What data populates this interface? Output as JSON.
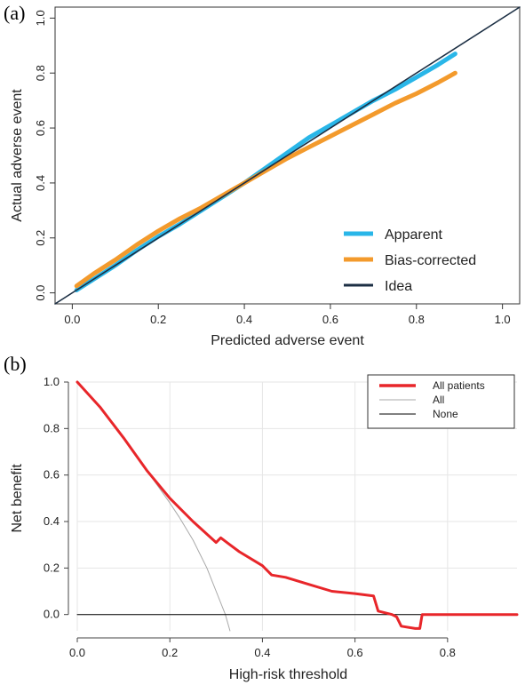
{
  "chart_data": [
    {
      "panel": "(a)",
      "type": "line",
      "xlabel": "Predicted adverse event",
      "ylabel": "Actual adverse event",
      "xlim": [
        -0.04,
        1.04
      ],
      "ylim": [
        -0.04,
        1.04
      ],
      "x_ticks": [
        "0.0",
        "0.2",
        "0.4",
        "0.6",
        "0.8",
        "1.0"
      ],
      "y_ticks": [
        "0.0",
        "0.2",
        "0.4",
        "0.6",
        "0.8",
        "1.0"
      ],
      "grid": false,
      "legend_position": "bottom-right",
      "series": [
        {
          "name": "Apparent",
          "color": "#29b6e8",
          "x": [
            0.01,
            0.05,
            0.1,
            0.15,
            0.2,
            0.25,
            0.3,
            0.35,
            0.4,
            0.45,
            0.5,
            0.55,
            0.6,
            0.65,
            0.7,
            0.75,
            0.8,
            0.85,
            0.89
          ],
          "y": [
            0.01,
            0.05,
            0.1,
            0.155,
            0.205,
            0.25,
            0.3,
            0.35,
            0.4,
            0.455,
            0.51,
            0.565,
            0.61,
            0.655,
            0.7,
            0.74,
            0.785,
            0.83,
            0.87
          ]
        },
        {
          "name": "Bias-corrected",
          "color": "#f39a2c",
          "x": [
            0.01,
            0.05,
            0.1,
            0.15,
            0.2,
            0.25,
            0.3,
            0.35,
            0.4,
            0.45,
            0.5,
            0.55,
            0.6,
            0.65,
            0.7,
            0.75,
            0.8,
            0.85,
            0.89
          ],
          "y": [
            0.025,
            0.07,
            0.12,
            0.175,
            0.225,
            0.27,
            0.31,
            0.355,
            0.4,
            0.445,
            0.49,
            0.53,
            0.57,
            0.61,
            0.65,
            0.69,
            0.725,
            0.765,
            0.8
          ]
        },
        {
          "name": "Idea",
          "color": "#1c2f44",
          "x": [
            -0.04,
            1.04
          ],
          "y": [
            -0.04,
            1.04
          ]
        }
      ]
    },
    {
      "panel": "(b)",
      "type": "line",
      "xlabel": "High-risk threshold",
      "ylabel": "Net benefit",
      "xlim": [
        0.0,
        0.95
      ],
      "ylim": [
        -0.07,
        1.0
      ],
      "x_ticks": [
        "0.0",
        "0.2",
        "0.4",
        "0.6",
        "0.8"
      ],
      "y_ticks": [
        "0.0",
        "0.2",
        "0.4",
        "0.6",
        "0.8",
        "1.0"
      ],
      "grid": true,
      "legend_position": "top-right",
      "series": [
        {
          "name": "All patients",
          "color": "#e8262a",
          "x": [
            0.0,
            0.05,
            0.1,
            0.15,
            0.2,
            0.25,
            0.3,
            0.31,
            0.33,
            0.35,
            0.4,
            0.42,
            0.45,
            0.5,
            0.55,
            0.6,
            0.64,
            0.65,
            0.68,
            0.69,
            0.7,
            0.73,
            0.74,
            0.745,
            0.75,
            0.8,
            0.95
          ],
          "y": [
            1.0,
            0.89,
            0.76,
            0.62,
            0.5,
            0.4,
            0.31,
            0.33,
            0.3,
            0.27,
            0.21,
            0.17,
            0.16,
            0.13,
            0.1,
            0.09,
            0.08,
            0.015,
            0.0,
            -0.01,
            -0.05,
            -0.06,
            -0.06,
            0.0,
            0.0,
            0.0,
            0.0
          ]
        },
        {
          "name": "All",
          "color": "#a9a9a9",
          "x": [
            0.0,
            0.05,
            0.1,
            0.15,
            0.2,
            0.22,
            0.25,
            0.28,
            0.3,
            0.32,
            0.33
          ],
          "y": [
            1.0,
            0.89,
            0.76,
            0.62,
            0.48,
            0.42,
            0.32,
            0.2,
            0.1,
            0.0,
            -0.07
          ]
        },
        {
          "name": "None",
          "color": "#000000",
          "x": [
            0.0,
            0.95
          ],
          "y": [
            0.0,
            0.0
          ]
        }
      ]
    }
  ]
}
